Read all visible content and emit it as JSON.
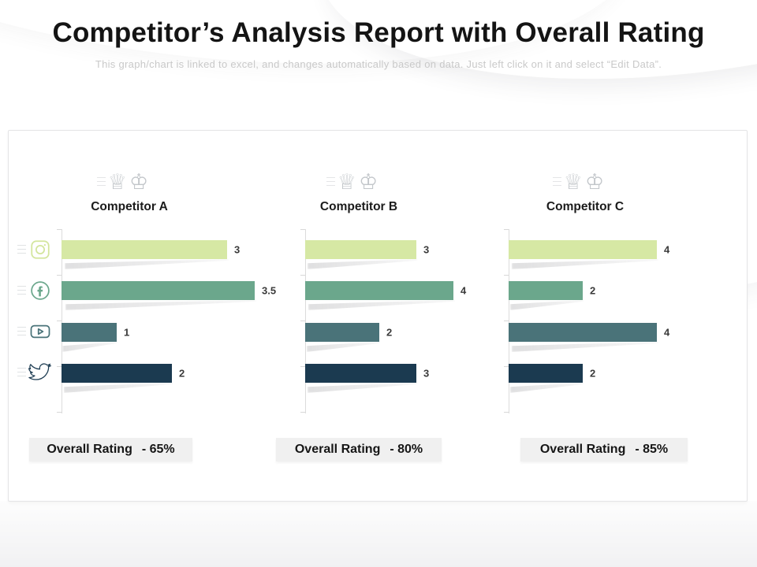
{
  "title": "Competitor’s Analysis Report with Overall Rating",
  "subtitle": "This graph/chart is linked to excel, and changes automatically based on data. Just left click on it and select “Edit Data”.",
  "labels": {
    "overall_rating": "Overall Rating"
  },
  "icons": {
    "chess_glyphs": "♕♔",
    "rail": [
      "instagram-icon",
      "facebook-icon",
      "youtube-icon",
      "twitter-icon"
    ]
  },
  "colors": {
    "row_colors": [
      "#D6E8A4",
      "#6BA78C",
      "#4A7379",
      "#1B3A50"
    ],
    "rating_box_bg": "#F0F0F0",
    "panel_border": "#E4E4E6",
    "axis": "#DCDCDC",
    "title_text": "#141414",
    "subtitle_text": "#C9C9C9"
  },
  "competitors": [
    {
      "name": "Competitor A",
      "rating_text": "- 65%"
    },
    {
      "name": "Competitor B",
      "rating_text": "- 80%"
    },
    {
      "name": "Competitor C",
      "rating_text": "- 85%"
    }
  ],
  "chart_data": [
    {
      "type": "bar",
      "orientation": "horizontal",
      "title": "Competitor A",
      "categories": [
        "Instagram",
        "Facebook",
        "YouTube",
        "Twitter"
      ],
      "values": [
        3,
        3.5,
        1,
        2
      ],
      "value_labels": [
        "3",
        "3.5",
        "1",
        "2"
      ],
      "xlim": [
        0,
        4
      ],
      "grid": false,
      "overall_rating": "65%"
    },
    {
      "type": "bar",
      "orientation": "horizontal",
      "title": "Competitor B",
      "categories": [
        "Instagram",
        "Facebook",
        "YouTube",
        "Twitter"
      ],
      "values": [
        3,
        4,
        2,
        3
      ],
      "value_labels": [
        "3",
        "4",
        "2",
        "3"
      ],
      "xlim": [
        0,
        4
      ],
      "grid": false,
      "overall_rating": "80%"
    },
    {
      "type": "bar",
      "orientation": "horizontal",
      "title": "Competitor C",
      "categories": [
        "Instagram",
        "Facebook",
        "YouTube",
        "Twitter"
      ],
      "values": [
        4,
        2,
        4,
        2
      ],
      "value_labels": [
        "4",
        "2",
        "4",
        "2"
      ],
      "xlim": [
        0,
        4
      ],
      "grid": false,
      "overall_rating": "85%"
    }
  ]
}
